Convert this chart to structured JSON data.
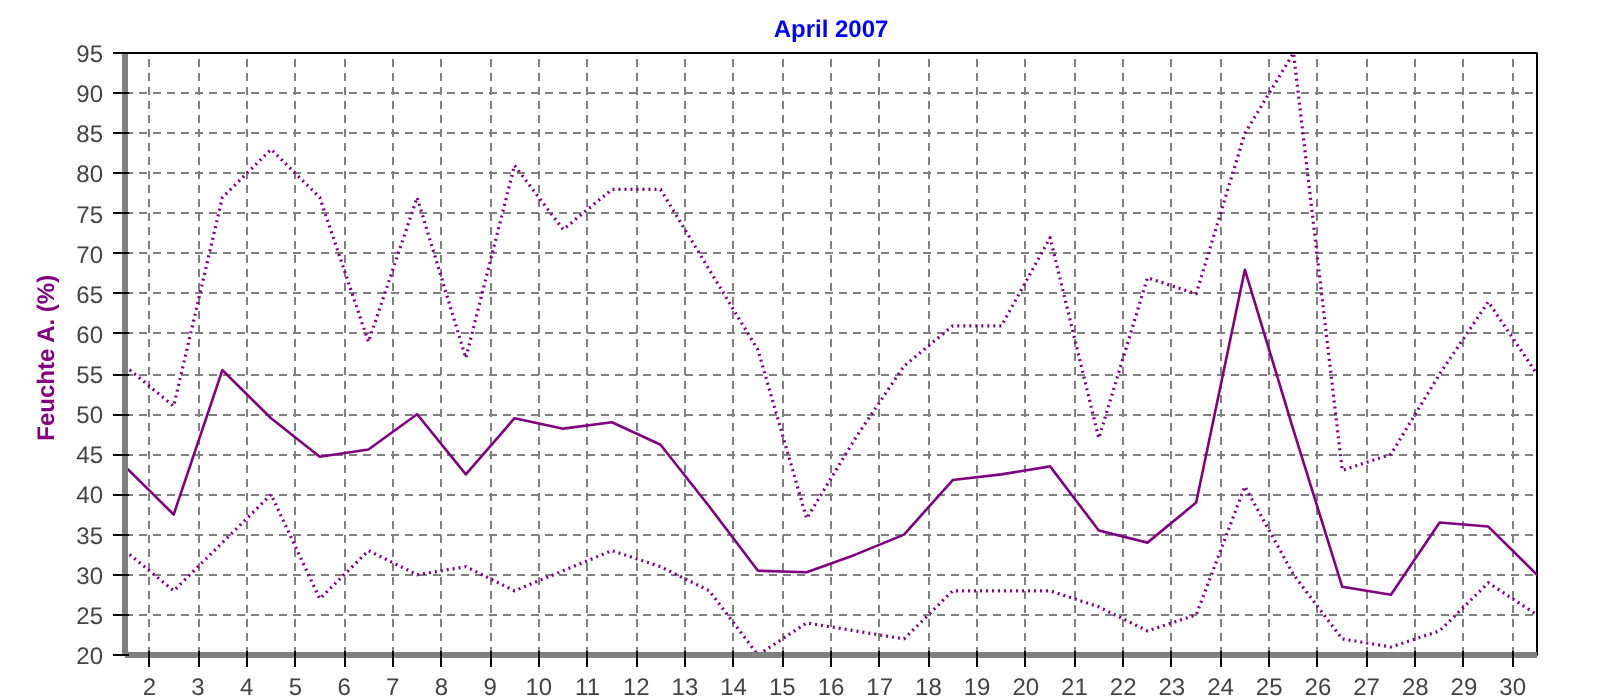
{
  "chart_data": {
    "type": "line",
    "title": "April 2007",
    "ylabel": "Feuchte A.  (%)",
    "x": [
      1.5,
      2.5,
      3.5,
      4.5,
      5.5,
      6.5,
      7.5,
      8.5,
      9.5,
      10.5,
      11.5,
      12.5,
      13.5,
      14.5,
      15.5,
      16.5,
      17.5,
      18.5,
      19.5,
      20.5,
      21.5,
      22.5,
      23.5,
      24.5,
      25.5,
      26.5,
      27.5,
      28.5,
      29.5,
      30.5
    ],
    "xlim": [
      1.5,
      30.5
    ],
    "xticks": [
      2,
      3,
      4,
      5,
      6,
      7,
      8,
      9,
      10,
      11,
      12,
      13,
      14,
      15,
      16,
      17,
      18,
      19,
      20,
      21,
      22,
      23,
      24,
      25,
      26,
      27,
      28,
      29,
      30
    ],
    "ylim": [
      20,
      95
    ],
    "yticks": [
      20,
      25,
      30,
      35,
      40,
      45,
      50,
      55,
      60,
      65,
      70,
      75,
      80,
      85,
      90,
      95
    ],
    "grid": true,
    "marker": "none",
    "series": [
      {
        "color": "#800080",
        "line_style": "dotted",
        "values": [
          56,
          51,
          77,
          83,
          77,
          59,
          77,
          57,
          81,
          73,
          78,
          78,
          68,
          58,
          37,
          47,
          56,
          61,
          61,
          72,
          47,
          67,
          65,
          85,
          95,
          43,
          45,
          55,
          64,
          55
        ]
      },
      {
        "color": "#800080",
        "line_style": "solid",
        "values": [
          43.5,
          37.5,
          55.5,
          49.5,
          44.7,
          45.6,
          50,
          42.5,
          49.5,
          48.2,
          49,
          46.2,
          38.5,
          30.5,
          30.3,
          32.5,
          35,
          41.8,
          42.5,
          43.5,
          35.5,
          34,
          39,
          68,
          48,
          28.5,
          27.5,
          36.5,
          36,
          30
        ]
      },
      {
        "color": "#800080",
        "line_style": "dotted",
        "values": [
          33,
          28,
          34,
          40,
          27,
          33,
          30,
          31,
          28,
          30.5,
          33,
          31,
          28,
          20,
          24,
          23,
          22,
          28,
          28,
          28,
          26,
          23,
          25,
          41,
          30,
          22,
          21,
          23,
          29,
          25
        ]
      }
    ]
  }
}
